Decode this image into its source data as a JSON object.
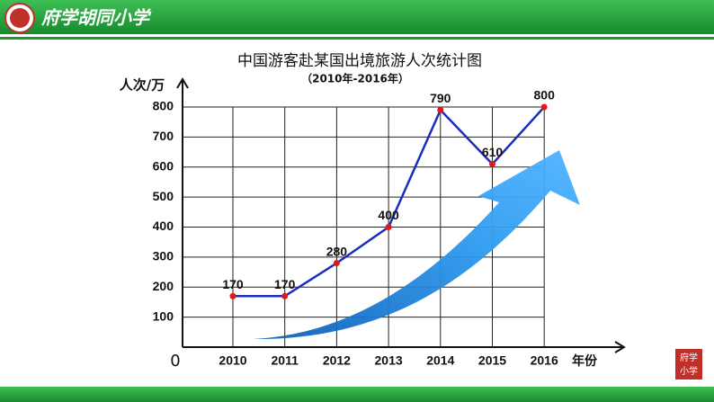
{
  "header": {
    "school": "府学胡同小学"
  },
  "badge": [
    "府学",
    "小学"
  ],
  "chart_data": {
    "type": "line",
    "title": "中国游客赴某国出境旅游人次统计图",
    "subtitle": "（2010年-2016年）",
    "y_label": "人次/万",
    "x_label": "年份",
    "categories": [
      "2010",
      "2011",
      "2012",
      "2013",
      "2014",
      "2015",
      "2016"
    ],
    "values": [
      170,
      170,
      280,
      400,
      790,
      610,
      800
    ],
    "color": "#1b2dbf",
    "marker_color": "#e01818",
    "ylim": [
      0,
      800
    ],
    "yticks": [
      0,
      100,
      200,
      300,
      400,
      500,
      600,
      700,
      800
    ],
    "grid": true
  }
}
